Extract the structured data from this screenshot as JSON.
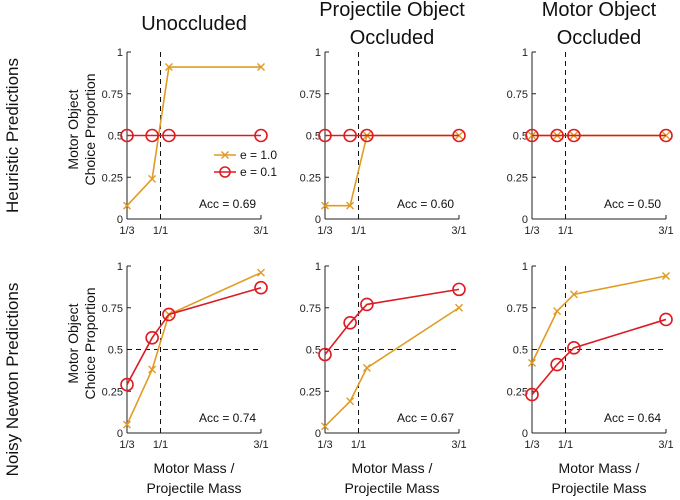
{
  "chart_data": {
    "type": "line",
    "column_titles": [
      [
        "Unoccluded"
      ],
      [
        "Projectile Object",
        "Occluded"
      ],
      [
        "Motor Object",
        "Occluded"
      ]
    ],
    "row_titles": [
      "Heuristic Predictions",
      "Noisy Newton Predictions"
    ],
    "ylabel": [
      "Motor Object",
      "Choice Proportion"
    ],
    "xlabel": [
      "Motor Mass /",
      "Projectile Mass"
    ],
    "x_categories": [
      "1/3",
      "1/1",
      "3/1"
    ],
    "x_values": [
      0.333,
      0.833,
      1.167,
      3
    ],
    "ylim": [
      0,
      1
    ],
    "y_ticks": [
      "0",
      "0.25",
      "0.5",
      "0.75",
      "1"
    ],
    "legend": [
      {
        "name": "e = 1.0",
        "color": "#e09c22",
        "marker": "x"
      },
      {
        "name": "e = 0.1",
        "color": "#dd1b22",
        "marker": "o"
      }
    ],
    "colors": {
      "e1": "#e09c22",
      "e01": "#dd1b22"
    },
    "panels": [
      {
        "row": 0,
        "col": 0,
        "accuracy": "Acc = 0.69",
        "series": [
          {
            "name": "e = 1.0",
            "values": [
              0.08,
              0.24,
              0.91,
              0.91
            ]
          },
          {
            "name": "e = 0.1",
            "values": [
              0.5,
              0.5,
              0.5,
              0.5
            ]
          }
        ]
      },
      {
        "row": 0,
        "col": 1,
        "accuracy": "Acc = 0.60",
        "series": [
          {
            "name": "e = 1.0",
            "values": [
              0.08,
              0.08,
              0.5,
              0.5
            ]
          },
          {
            "name": "e = 0.1",
            "values": [
              0.5,
              0.5,
              0.5,
              0.5
            ]
          }
        ]
      },
      {
        "row": 0,
        "col": 2,
        "accuracy": "Acc = 0.50",
        "series": [
          {
            "name": "e = 1.0",
            "values": [
              0.5,
              0.5,
              0.5,
              0.5
            ]
          },
          {
            "name": "e = 0.1",
            "values": [
              0.5,
              0.5,
              0.5,
              0.5
            ]
          }
        ]
      },
      {
        "row": 1,
        "col": 0,
        "accuracy": "Acc = 0.74",
        "series": [
          {
            "name": "e = 1.0",
            "values": [
              0.05,
              0.38,
              0.71,
              0.96
            ]
          },
          {
            "name": "e = 0.1",
            "values": [
              0.29,
              0.57,
              0.71,
              0.87
            ]
          }
        ]
      },
      {
        "row": 1,
        "col": 1,
        "accuracy": "Acc = 0.67",
        "series": [
          {
            "name": "e = 1.0",
            "values": [
              0.04,
              0.19,
              0.39,
              0.75
            ]
          },
          {
            "name": "e = 0.1",
            "values": [
              0.47,
              0.66,
              0.77,
              0.86
            ]
          }
        ]
      },
      {
        "row": 1,
        "col": 2,
        "accuracy": "Acc = 0.64",
        "series": [
          {
            "name": "e = 1.0",
            "values": [
              0.42,
              0.73,
              0.83,
              0.94
            ]
          },
          {
            "name": "e = 0.1",
            "values": [
              0.23,
              0.41,
              0.51,
              0.68
            ]
          }
        ]
      }
    ]
  }
}
